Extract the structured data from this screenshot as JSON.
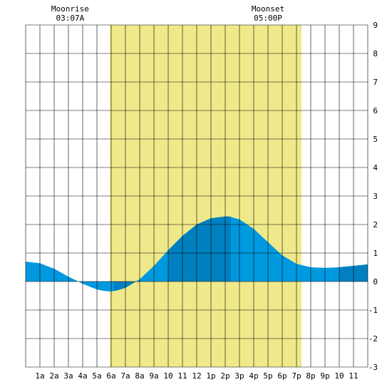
{
  "chart_data": {
    "type": "area",
    "title": "",
    "xlabel": "",
    "ylabel": "",
    "xlim": [
      0,
      24
    ],
    "ylim": [
      -3,
      9
    ],
    "grid": true,
    "x_tick_labels": [
      "1a",
      "2a",
      "3a",
      "4a",
      "5a",
      "6a",
      "7a",
      "8a",
      "9a",
      "10",
      "11",
      "12",
      "1p",
      "2p",
      "3p",
      "4p",
      "5p",
      "6p",
      "7p",
      "8p",
      "9p",
      "10",
      "11"
    ],
    "y_tick_labels": [
      "9",
      "8",
      "7",
      "6",
      "5",
      "4",
      "3",
      "2",
      "1",
      "0",
      "-1",
      "-2",
      "-3"
    ],
    "daylight": {
      "start_hour": 5.9,
      "end_hour": 19.35,
      "color": "#f0e98a"
    },
    "moon_events": [
      {
        "label": "Moonrise",
        "time": "03:07A",
        "hour": 3.12
      },
      {
        "label": "Moonset",
        "time": "05:00P",
        "hour": 17.0
      }
    ],
    "tide_series": {
      "name": "",
      "x": [
        0,
        1,
        2,
        3,
        3.7,
        4,
        5,
        5.5,
        6,
        6.5,
        7,
        8,
        9,
        10,
        11,
        12,
        13,
        14,
        14.3,
        15,
        16,
        17,
        18,
        19,
        20,
        21,
        22,
        23,
        24
      ],
      "y": [
        0.7,
        0.64,
        0.45,
        0.17,
        0,
        -0.08,
        -0.28,
        -0.33,
        -0.35,
        -0.3,
        -0.22,
        0.08,
        0.55,
        1.1,
        1.6,
        2.0,
        2.22,
        2.28,
        2.28,
        2.18,
        1.85,
        1.38,
        0.92,
        0.62,
        0.5,
        0.48,
        0.5,
        0.55,
        0.6
      ],
      "fill_color": "#0099e0",
      "highlight_color": "#0080c0",
      "highlight_ranges": [
        [
          6.2,
          7.8
        ],
        [
          10.0,
          14.4
        ],
        [
          22.0,
          24.0
        ]
      ]
    }
  }
}
